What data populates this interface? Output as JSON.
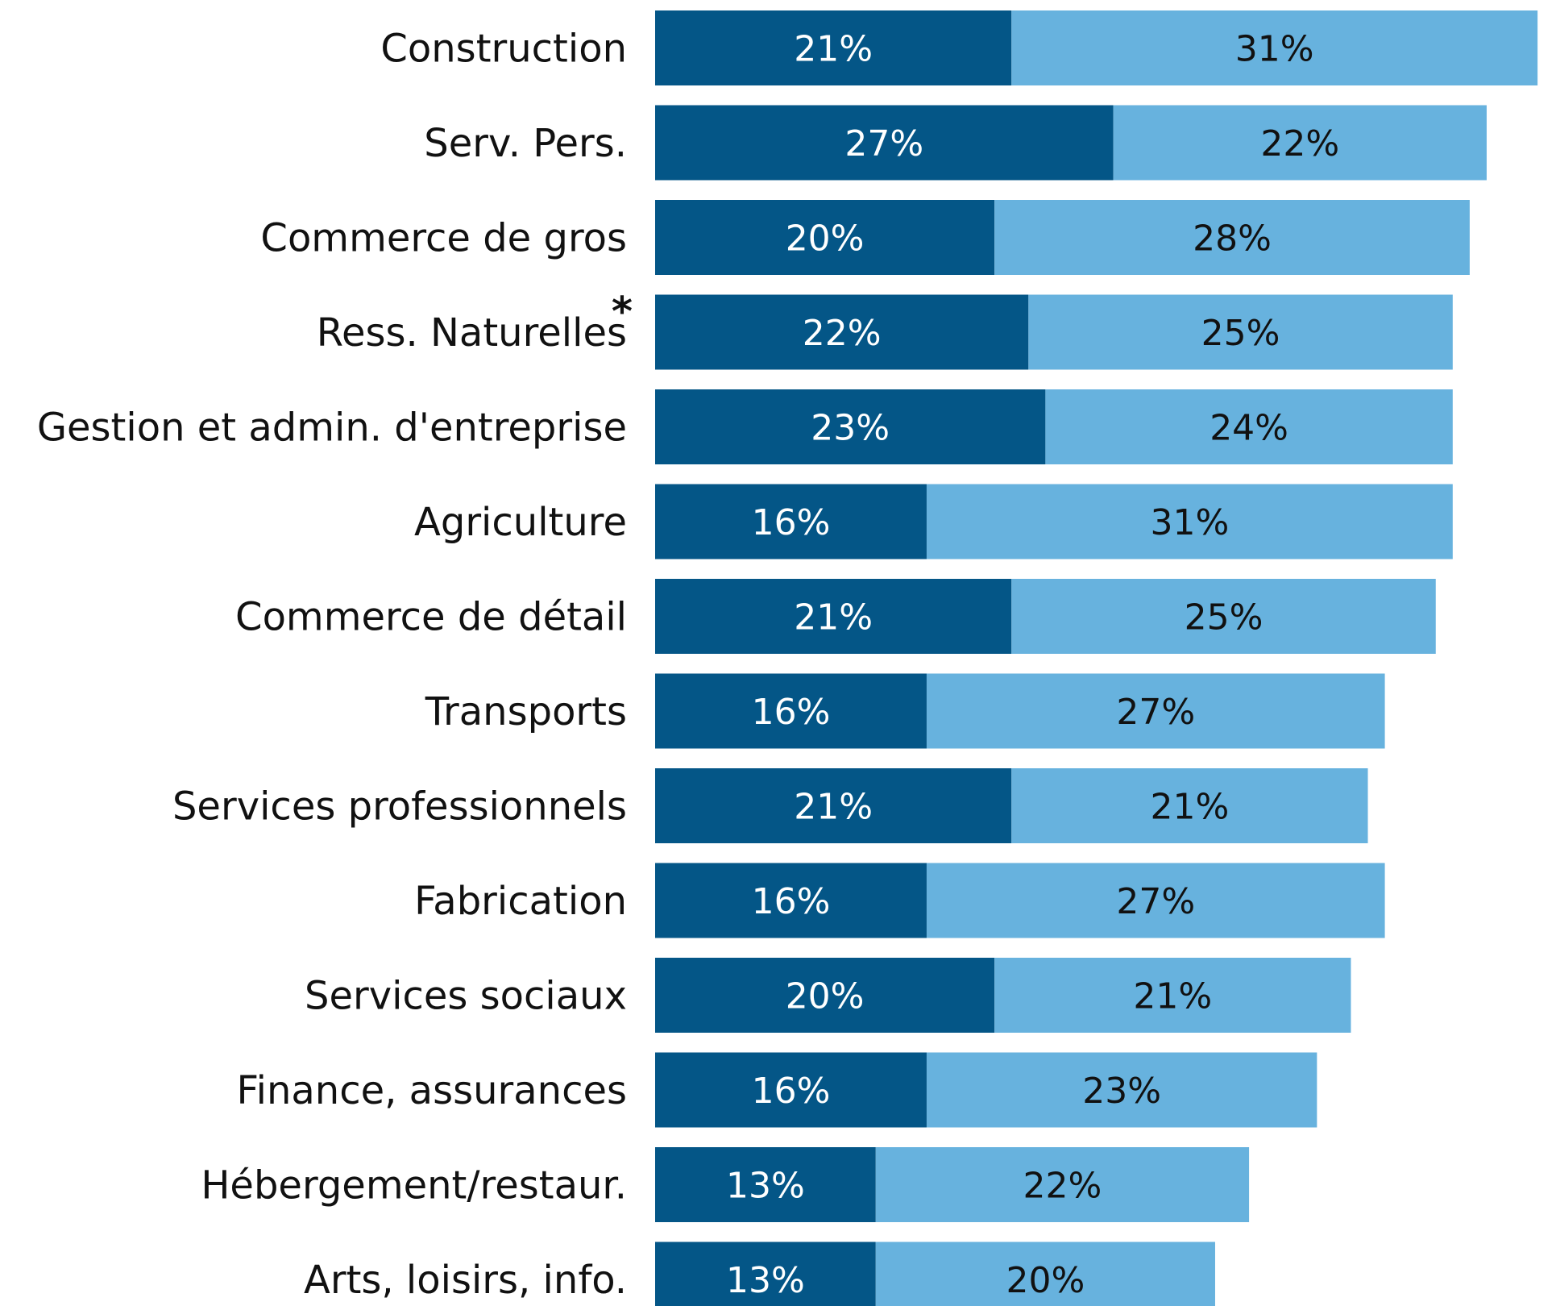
{
  "chart_data": {
    "type": "bar",
    "orientation": "horizontal",
    "stacked": true,
    "categories": [
      "Construction",
      "Serv. Pers.",
      "Commerce de gros",
      "Ress. Naturelles",
      "Gestion et admin. d'entreprise",
      "Agriculture",
      "Commerce de détail",
      "Transports",
      "Services professionnels",
      "Fabrication",
      "Services sociaux",
      "Finance, assurances",
      "Hébergement/restaur.",
      "Arts, loisirs, info."
    ],
    "footnote_markers": [
      "",
      "",
      "",
      "*",
      "",
      "",
      "",
      "",
      "",
      "",
      "",
      "",
      "",
      ""
    ],
    "series": [
      {
        "color": "#045687",
        "values": [
          21,
          27,
          20,
          22,
          23,
          16,
          21,
          16,
          21,
          16,
          20,
          16,
          13,
          13
        ],
        "labels": [
          "21%",
          "27%",
          "20%",
          "22%",
          "23%",
          "16%",
          "21%",
          "16%",
          "21%",
          "16%",
          "20%",
          "16%",
          "13%",
          "13%"
        ]
      },
      {
        "color": "#67B2DE",
        "values": [
          31,
          22,
          28,
          25,
          24,
          31,
          25,
          27,
          21,
          27,
          21,
          23,
          22,
          20
        ],
        "labels": [
          "31%",
          "22%",
          "28%",
          "25%",
          "24%",
          "31%",
          "25%",
          "27%",
          "21%",
          "27%",
          "21%",
          "23%",
          "22%",
          "20%"
        ]
      }
    ],
    "unit": "%",
    "grid": false,
    "legend": "none"
  }
}
